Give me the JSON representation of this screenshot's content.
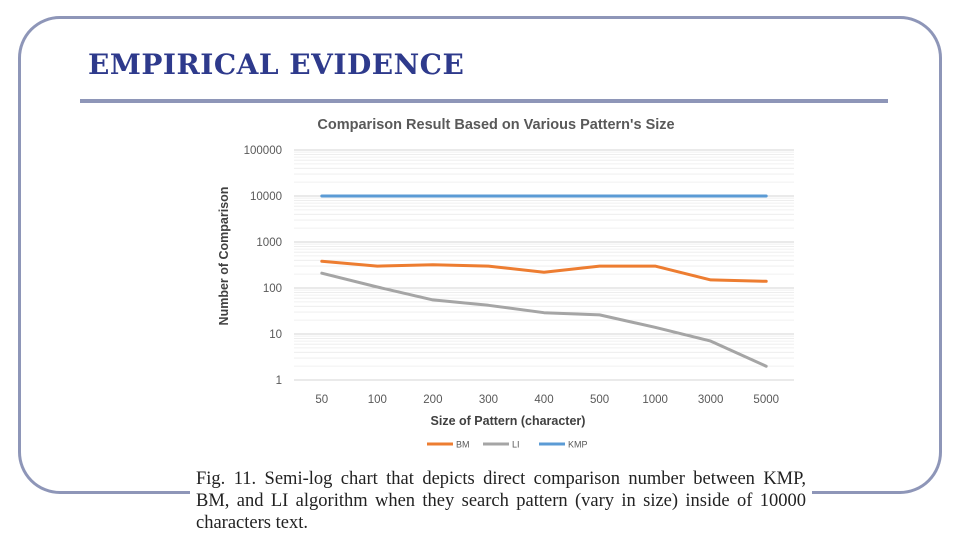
{
  "slide": {
    "title": "EMPIRICAL EVIDENCE"
  },
  "chart_data": {
    "type": "line",
    "title": "Comparison Result Based on Various Pattern's Size",
    "xlabel": "Size of Pattern (character)",
    "ylabel": "Number of Comparison",
    "y_scale": "log",
    "ylim": [
      1,
      100000
    ],
    "y_ticks": [
      "1",
      "10",
      "100",
      "1000",
      "10000",
      "100000"
    ],
    "categories": [
      "50",
      "100",
      "200",
      "300",
      "400",
      "500",
      "1000",
      "3000",
      "5000"
    ],
    "grid": true,
    "legend_position": "bottom",
    "series": [
      {
        "name": "BM",
        "color": "#ed7d31",
        "values": [
          380,
          300,
          320,
          300,
          220,
          300,
          300,
          150,
          140
        ]
      },
      {
        "name": "LI",
        "color": "#a5a5a5",
        "values": [
          210,
          105,
          55,
          42,
          29,
          26,
          14,
          7,
          2
        ]
      },
      {
        "name": "KMP",
        "color": "#5b9bd5",
        "values": [
          10000,
          10000,
          10000,
          10000,
          10000,
          10000,
          10000,
          10000,
          10000
        ]
      }
    ]
  },
  "caption": "Fig. 11. Semi-log chart that depicts direct comparison number between KMP, BM, and LI algorithm when they search pattern (vary in size) inside of 10000 characters text."
}
